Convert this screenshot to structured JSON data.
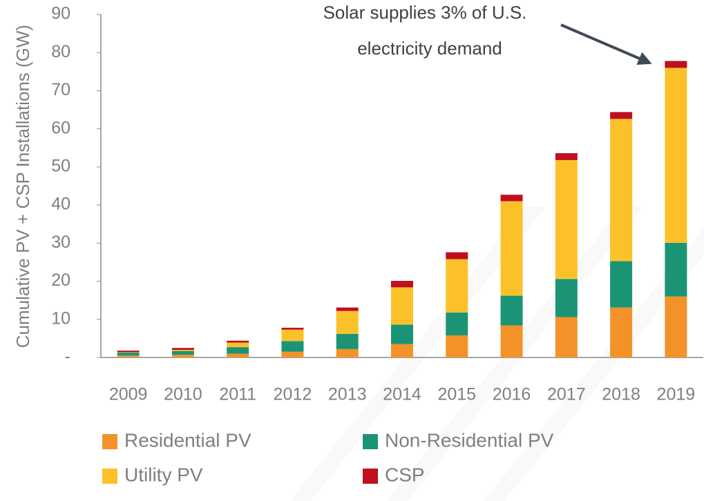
{
  "chart_data": {
    "type": "stacked_bar",
    "ylabel": "Cumulative PV + CSP Installations (GW)",
    "annotation": [
      "Solar supplies 3% of U.S.",
      "electricity demand"
    ],
    "categories": [
      "2009",
      "2010",
      "2011",
      "2012",
      "2013",
      "2014",
      "2015",
      "2016",
      "2017",
      "2018",
      "2019"
    ],
    "series": [
      {
        "name": "Residential PV",
        "color": "#f39229",
        "values": [
          0.5,
          0.7,
          1.0,
          1.5,
          2.2,
          3.5,
          5.8,
          8.4,
          10.6,
          13.1,
          16.0
        ]
      },
      {
        "name": "Non-Residential PV",
        "color": "#1b9476",
        "values": [
          0.8,
          1.0,
          1.7,
          2.8,
          4.0,
          5.1,
          6.0,
          7.8,
          10.0,
          12.2,
          14.1
        ]
      },
      {
        "name": "Utility PV",
        "color": "#fcc12a",
        "values": [
          0.1,
          0.3,
          1.2,
          3.0,
          6.0,
          9.8,
          14.0,
          24.8,
          31.2,
          37.3,
          45.9
        ]
      },
      {
        "name": "CSP",
        "color": "#c00f1e",
        "values": [
          0.4,
          0.5,
          0.5,
          0.5,
          0.9,
          1.7,
          1.8,
          1.7,
          1.8,
          1.8,
          1.8
        ]
      }
    ],
    "ylim": [
      0,
      90
    ],
    "yticks": [
      {
        "value": 0,
        "label": "-"
      },
      10,
      20,
      30,
      40,
      50,
      60,
      70,
      80,
      90
    ]
  }
}
